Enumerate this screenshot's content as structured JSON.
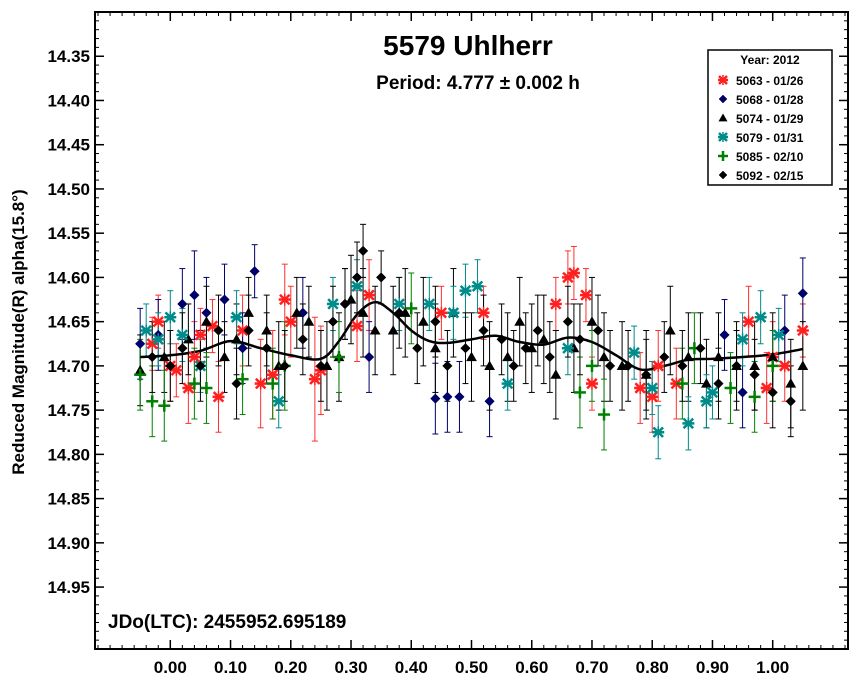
{
  "chart_data": {
    "type": "scatter",
    "title": "5579 Uhlherr",
    "subtitle": "Period: 4.777 ± 0.002 h",
    "ylabel": "Reduced Magnitude(R) alpha(15.8°)",
    "xlabel": "",
    "annotation": "JDo(LTC): 2455952.695189",
    "xlim": [
      -0.125,
      1.125
    ],
    "ylim": [
      15.02,
      14.3
    ],
    "y_inverted": true,
    "x_ticks": [
      "0.00",
      "0.10",
      "0.20",
      "0.30",
      "0.40",
      "0.50",
      "0.60",
      "0.70",
      "0.80",
      "0.90",
      "1.00"
    ],
    "y_ticks": [
      "14.35",
      "14.40",
      "14.45",
      "14.50",
      "14.55",
      "14.60",
      "14.65",
      "14.70",
      "14.75",
      "14.80",
      "14.85",
      "14.90",
      "14.95"
    ],
    "grid": false,
    "legend": {
      "position": "top-right",
      "title": "Year: 2012",
      "entries": [
        {
          "label": "5063 - 01/26",
          "color": "#ff2020",
          "marker": "asterisk"
        },
        {
          "label": "5068 - 01/28",
          "color": "#00006a",
          "marker": "diamond"
        },
        {
          "label": "5074 - 01/29",
          "color": "#000000",
          "marker": "triangle"
        },
        {
          "label": "5079 - 01/31",
          "color": "#008b8b",
          "marker": "asterisk"
        },
        {
          "label": "5085 - 02/10",
          "color": "#008000",
          "marker": "plus"
        },
        {
          "label": "5092 - 02/15",
          "color": "#000000",
          "marker": "diamond"
        }
      ]
    },
    "fit_curve": {
      "x": [
        -0.05,
        0.0,
        0.05,
        0.1,
        0.15,
        0.2,
        0.25,
        0.28,
        0.31,
        0.34,
        0.37,
        0.4,
        0.43,
        0.46,
        0.5,
        0.54,
        0.58,
        0.62,
        0.66,
        0.7,
        0.74,
        0.78,
        0.82,
        0.86,
        0.9,
        0.95,
        1.0,
        1.05
      ],
      "y": [
        14.69,
        14.688,
        14.683,
        14.672,
        14.68,
        14.688,
        14.692,
        14.672,
        14.642,
        14.628,
        14.64,
        14.66,
        14.672,
        14.674,
        14.67,
        14.666,
        14.673,
        14.676,
        14.668,
        14.673,
        14.688,
        14.704,
        14.7,
        14.693,
        14.692,
        14.69,
        14.687,
        14.681
      ]
    },
    "series": [
      {
        "name": "5063 - 01/26",
        "x": [
          -0.03,
          -0.02,
          0.0,
          0.01,
          0.03,
          0.04,
          0.05,
          0.07,
          0.08,
          0.12,
          0.15,
          0.17,
          0.19,
          0.2,
          0.24,
          0.25,
          0.31,
          0.33,
          0.45,
          0.52,
          0.64,
          0.66,
          0.67,
          0.69,
          0.7,
          0.78,
          0.8,
          0.81,
          0.84,
          0.96,
          0.99,
          1.0,
          1.02,
          1.05
        ],
        "y": [
          14.675,
          14.65,
          14.7,
          14.705,
          14.725,
          14.69,
          14.665,
          14.655,
          14.735,
          14.66,
          14.72,
          14.71,
          14.625,
          14.65,
          14.715,
          14.705,
          14.655,
          14.62,
          14.64,
          14.64,
          14.63,
          14.6,
          14.595,
          14.62,
          14.72,
          14.725,
          14.735,
          14.7,
          14.72,
          14.65,
          14.725,
          14.69,
          14.7,
          14.66
        ],
        "err": [
          0.03,
          0.03,
          0.04,
          0.03,
          0.04,
          0.04,
          0.03,
          0.03,
          0.04,
          0.04,
          0.05,
          0.05,
          0.04,
          0.04,
          0.07,
          0.05,
          0.04,
          0.04,
          0.03,
          0.03,
          0.03,
          0.03,
          0.03,
          0.03,
          0.03,
          0.04,
          0.04,
          0.04,
          0.04,
          0.04,
          0.04,
          0.04,
          0.04,
          0.03
        ]
      },
      {
        "name": "5068 - 01/28",
        "x": [
          -0.05,
          -0.02,
          0.02,
          0.04,
          0.06,
          0.09,
          0.12,
          0.14,
          0.22,
          0.29,
          0.33,
          0.44,
          0.46,
          0.48,
          0.53,
          0.92,
          0.95,
          1.02,
          1.05
        ],
        "y": [
          14.675,
          14.665,
          14.63,
          14.62,
          14.64,
          14.625,
          14.68,
          14.593,
          14.64,
          14.63,
          14.69,
          14.737,
          14.735,
          14.735,
          14.74,
          14.665,
          14.73,
          14.66,
          14.618
        ],
        "err": [
          0.04,
          0.04,
          0.04,
          0.05,
          0.04,
          0.04,
          0.04,
          0.03,
          0.04,
          0.04,
          0.04,
          0.04,
          0.04,
          0.04,
          0.04,
          0.04,
          0.04,
          0.04,
          0.04
        ]
      },
      {
        "name": "5074 - 01/29",
        "x": [
          -0.05,
          -0.01,
          0.03,
          0.06,
          0.09,
          0.11,
          0.13,
          0.16,
          0.18,
          0.21,
          0.23,
          0.26,
          0.28,
          0.3,
          0.32,
          0.34,
          0.37,
          0.39,
          0.42,
          0.44,
          0.47,
          0.5,
          0.53,
          0.56,
          0.58,
          0.6,
          0.62,
          0.64,
          0.67,
          0.7,
          0.72,
          0.75,
          0.79,
          0.83,
          0.86,
          0.89,
          0.91,
          0.94,
          0.97,
          1.0,
          1.03,
          1.05
        ],
        "y": [
          14.705,
          14.69,
          14.67,
          14.65,
          14.69,
          14.67,
          14.64,
          14.66,
          14.7,
          14.64,
          14.65,
          14.7,
          14.69,
          14.625,
          14.64,
          14.66,
          14.66,
          14.64,
          14.65,
          14.68,
          14.64,
          14.69,
          14.7,
          14.69,
          14.65,
          14.68,
          14.67,
          14.71,
          14.68,
          14.65,
          14.69,
          14.7,
          14.71,
          14.66,
          14.69,
          14.72,
          14.69,
          14.7,
          14.7,
          14.69,
          14.72,
          14.7
        ],
        "err": [
          0.04,
          0.04,
          0.04,
          0.04,
          0.04,
          0.04,
          0.04,
          0.04,
          0.05,
          0.04,
          0.04,
          0.05,
          0.05,
          0.05,
          0.05,
          0.05,
          0.05,
          0.05,
          0.05,
          0.05,
          0.05,
          0.05,
          0.05,
          0.05,
          0.05,
          0.05,
          0.05,
          0.05,
          0.05,
          0.05,
          0.05,
          0.05,
          0.05,
          0.05,
          0.05,
          0.05,
          0.05,
          0.05,
          0.05,
          0.05,
          0.05,
          0.05
        ]
      },
      {
        "name": "5079 - 01/31",
        "x": [
          -0.04,
          -0.02,
          0.0,
          0.02,
          0.05,
          0.11,
          0.18,
          0.27,
          0.31,
          0.38,
          0.43,
          0.47,
          0.49,
          0.51,
          0.56,
          0.66,
          0.77,
          0.8,
          0.81,
          0.86,
          0.89,
          0.9,
          0.95,
          0.98,
          1.01
        ],
        "y": [
          14.66,
          14.67,
          14.645,
          14.665,
          14.7,
          14.645,
          14.74,
          14.63,
          14.61,
          14.63,
          14.63,
          14.64,
          14.615,
          14.61,
          14.72,
          14.68,
          14.685,
          14.725,
          14.775,
          14.765,
          14.74,
          14.73,
          14.67,
          14.645,
          14.665
        ],
        "err": [
          0.03,
          0.03,
          0.03,
          0.03,
          0.03,
          0.03,
          0.03,
          0.03,
          0.03,
          0.03,
          0.03,
          0.03,
          0.03,
          0.03,
          0.03,
          0.03,
          0.03,
          0.03,
          0.03,
          0.03,
          0.03,
          0.03,
          0.03,
          0.03,
          0.03
        ]
      },
      {
        "name": "5085 - 02/10",
        "x": [
          -0.05,
          -0.03,
          -0.01,
          0.04,
          0.06,
          0.12,
          0.17,
          0.19,
          0.28,
          0.4,
          0.68,
          0.7,
          0.72,
          0.85,
          0.87,
          0.93,
          0.97,
          1.0
        ],
        "y": [
          14.71,
          14.74,
          14.745,
          14.72,
          14.725,
          14.715,
          14.72,
          14.7,
          14.69,
          14.635,
          14.73,
          14.7,
          14.755,
          14.72,
          14.68,
          14.725,
          14.735,
          14.7
        ],
        "err": [
          0.04,
          0.04,
          0.04,
          0.04,
          0.04,
          0.04,
          0.04,
          0.05,
          0.04,
          0.04,
          0.04,
          0.04,
          0.04,
          0.04,
          0.04,
          0.04,
          0.04,
          0.04
        ]
      },
      {
        "name": "5092 - 02/15",
        "x": [
          -0.03,
          0.0,
          0.02,
          0.05,
          0.08,
          0.11,
          0.13,
          0.16,
          0.19,
          0.22,
          0.25,
          0.27,
          0.29,
          0.31,
          0.32,
          0.35,
          0.38,
          0.41,
          0.44,
          0.46,
          0.49,
          0.52,
          0.55,
          0.57,
          0.59,
          0.61,
          0.63,
          0.66,
          0.68,
          0.71,
          0.73,
          0.76,
          0.79,
          0.82,
          0.85,
          0.88,
          0.91,
          0.94,
          0.97,
          1.0,
          1.03
        ],
        "y": [
          14.69,
          14.7,
          14.68,
          14.7,
          14.66,
          14.72,
          14.66,
          14.68,
          14.7,
          14.67,
          14.7,
          14.65,
          14.63,
          14.6,
          14.57,
          14.6,
          14.64,
          14.68,
          14.65,
          14.7,
          14.68,
          14.66,
          14.67,
          14.7,
          14.68,
          14.66,
          14.69,
          14.65,
          14.67,
          14.66,
          14.7,
          14.7,
          14.71,
          14.69,
          14.7,
          14.68,
          14.72,
          14.7,
          14.71,
          14.73,
          14.74
        ],
        "err": [
          0.04,
          0.04,
          0.04,
          0.04,
          0.04,
          0.04,
          0.04,
          0.04,
          0.04,
          0.04,
          0.04,
          0.04,
          0.04,
          0.04,
          0.03,
          0.03,
          0.04,
          0.04,
          0.04,
          0.04,
          0.04,
          0.04,
          0.04,
          0.04,
          0.04,
          0.04,
          0.04,
          0.04,
          0.04,
          0.04,
          0.04,
          0.04,
          0.04,
          0.04,
          0.04,
          0.04,
          0.04,
          0.04,
          0.04,
          0.04,
          0.04
        ]
      }
    ]
  }
}
